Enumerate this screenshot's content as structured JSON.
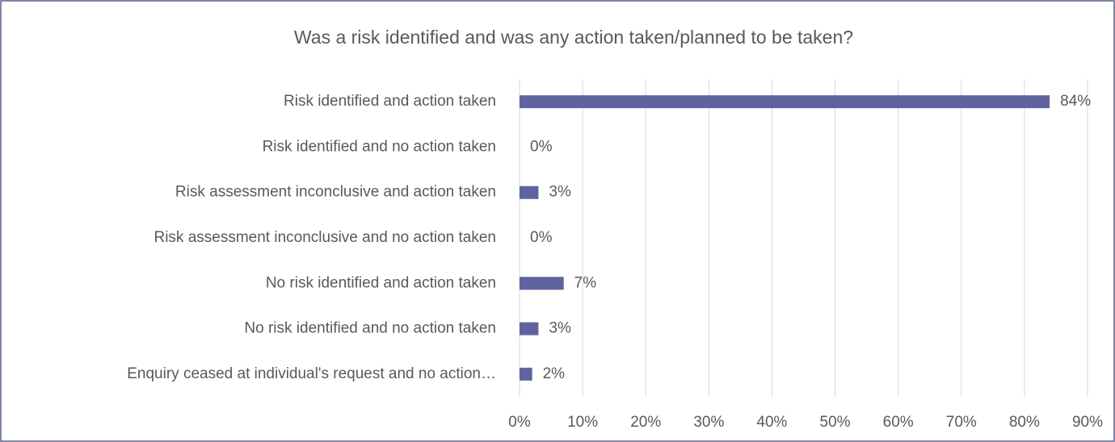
{
  "chart_data": {
    "type": "bar",
    "orientation": "horizontal",
    "title": "Was a risk identified and was any action taken/planned to be taken?",
    "categories": [
      "Risk identified and action taken",
      "Risk identified and no action taken",
      "Risk assessment inconclusive and action taken",
      "Risk assessment inconclusive and no action taken",
      "No risk identified and action taken",
      "No risk identified and no action taken",
      "Enquiry ceased at individual's request and no action…"
    ],
    "values": [
      84,
      0,
      3,
      0,
      7,
      3,
      2
    ],
    "value_labels": [
      "84%",
      "0%",
      "3%",
      "0%",
      "7%",
      "3%",
      "2%"
    ],
    "color": "#5f64a0",
    "xlim": [
      0,
      90
    ],
    "xticks": [
      {
        "value": 0,
        "label": "0%"
      },
      {
        "value": 10,
        "label": "10%"
      },
      {
        "value": 20,
        "label": "20%"
      },
      {
        "value": 30,
        "label": "30%"
      },
      {
        "value": 40,
        "label": "40%"
      },
      {
        "value": 50,
        "label": "50%"
      },
      {
        "value": 60,
        "label": "60%"
      },
      {
        "value": 70,
        "label": "70%"
      },
      {
        "value": 80,
        "label": "80%"
      },
      {
        "value": 90,
        "label": "90%"
      }
    ],
    "grid": true
  }
}
